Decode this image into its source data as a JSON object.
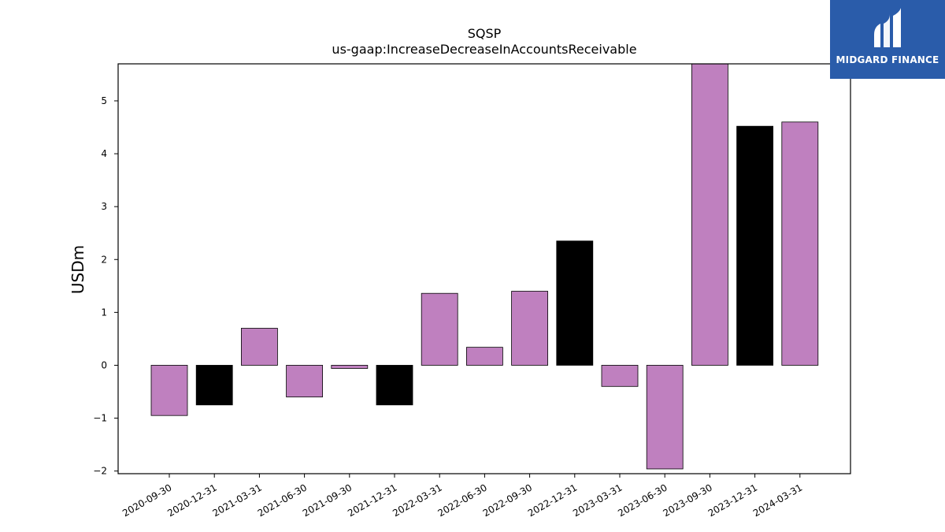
{
  "chart_data": {
    "type": "bar",
    "title": "SQSP",
    "subtitle": "us-gaap:IncreaseDecreaseInAccountsReceivable",
    "xlabel": "",
    "ylabel": "USDm",
    "ylim": [
      -2.05,
      5.7
    ],
    "yticks": [
      -2,
      -1,
      0,
      1,
      2,
      3,
      4,
      5
    ],
    "ytick_labels": [
      "−2",
      "−1",
      "0",
      "1",
      "2",
      "3",
      "4",
      "5"
    ],
    "grid": false,
    "categories": [
      "2020-09-30",
      "2020-12-31",
      "2021-03-31",
      "2021-06-30",
      "2021-09-30",
      "2021-12-31",
      "2022-03-31",
      "2022-06-30",
      "2022-09-30",
      "2022-12-31",
      "2023-03-31",
      "2023-06-30",
      "2023-09-30",
      "2023-12-31",
      "2024-03-31"
    ],
    "values": [
      -0.95,
      -0.75,
      0.7,
      -0.6,
      -0.06,
      -0.75,
      1.36,
      0.34,
      1.4,
      2.35,
      -0.4,
      -1.96,
      5.75,
      4.52,
      4.6
    ],
    "bar_colors": [
      "#bf80bf",
      "#000000",
      "#bf80bf",
      "#bf80bf",
      "#bf80bf",
      "#000000",
      "#bf80bf",
      "#bf80bf",
      "#bf80bf",
      "#000000",
      "#bf80bf",
      "#bf80bf",
      "#bf80bf",
      "#000000",
      "#bf80bf"
    ]
  },
  "logo": {
    "text": "MIDGARD FINANCE",
    "background": "#2a5caa"
  }
}
